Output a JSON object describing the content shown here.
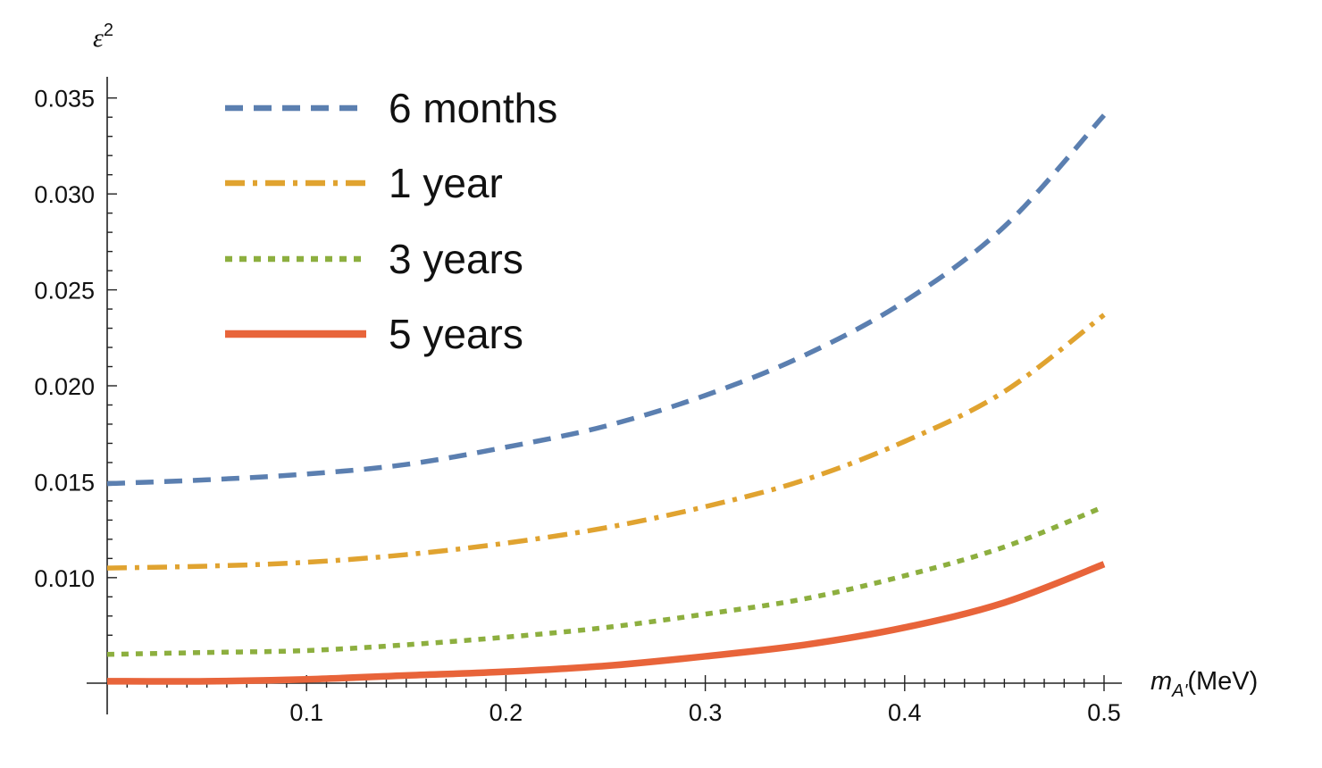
{
  "chart_data": {
    "type": "line",
    "title": "",
    "xlabel": {
      "main": "m",
      "sub": "A'",
      "unit": "(MeV)"
    },
    "ylabel": {
      "main": "ε",
      "sup": "2"
    },
    "xlim": [
      0,
      0.5
    ],
    "ylim": [
      0.0045,
      0.0355
    ],
    "x_origin": 0,
    "y_axis_crossing": 0.0045,
    "x_ticks": [
      0.1,
      0.2,
      0.3,
      0.4,
      0.5
    ],
    "x_tick_labels": [
      "0.1",
      "0.2",
      "0.3",
      "0.4",
      "0.5"
    ],
    "y_ticks": [
      0.01,
      0.015,
      0.02,
      0.025,
      0.03,
      0.035
    ],
    "y_tick_labels": [
      "0.010",
      "0.015",
      "0.020",
      "0.025",
      "0.030",
      "0.035"
    ],
    "grid": false,
    "legend_position": "top-left",
    "x": [
      0,
      0.05,
      0.1,
      0.15,
      0.2,
      0.25,
      0.3,
      0.35,
      0.4,
      0.45,
      0.5
    ],
    "series": [
      {
        "name": "6 months",
        "color": "#5b7fb0",
        "style": "dashed",
        "values": [
          0.0149,
          0.0151,
          0.0154,
          0.0159,
          0.0168,
          0.0179,
          0.0195,
          0.0216,
          0.0244,
          0.0283,
          0.0341
        ]
      },
      {
        "name": "1 year",
        "color": "#e0a330",
        "style": "dashdot",
        "values": [
          0.0105,
          0.0106,
          0.0108,
          0.0112,
          0.0118,
          0.0126,
          0.0137,
          0.0151,
          0.0171,
          0.0197,
          0.0237
        ]
      },
      {
        "name": "3 years",
        "color": "#8daf3f",
        "style": "dotted",
        "values": [
          0.006,
          0.0061,
          0.0062,
          0.0065,
          0.0069,
          0.0074,
          0.0081,
          0.0089,
          0.0101,
          0.0116,
          0.0137
        ]
      },
      {
        "name": "5 years",
        "color": "#e8643a",
        "style": "solid",
        "values": [
          0.0046,
          0.0046,
          0.0047,
          0.0049,
          0.0051,
          0.0054,
          0.0059,
          0.0065,
          0.0074,
          0.0087,
          0.0107
        ]
      }
    ]
  }
}
